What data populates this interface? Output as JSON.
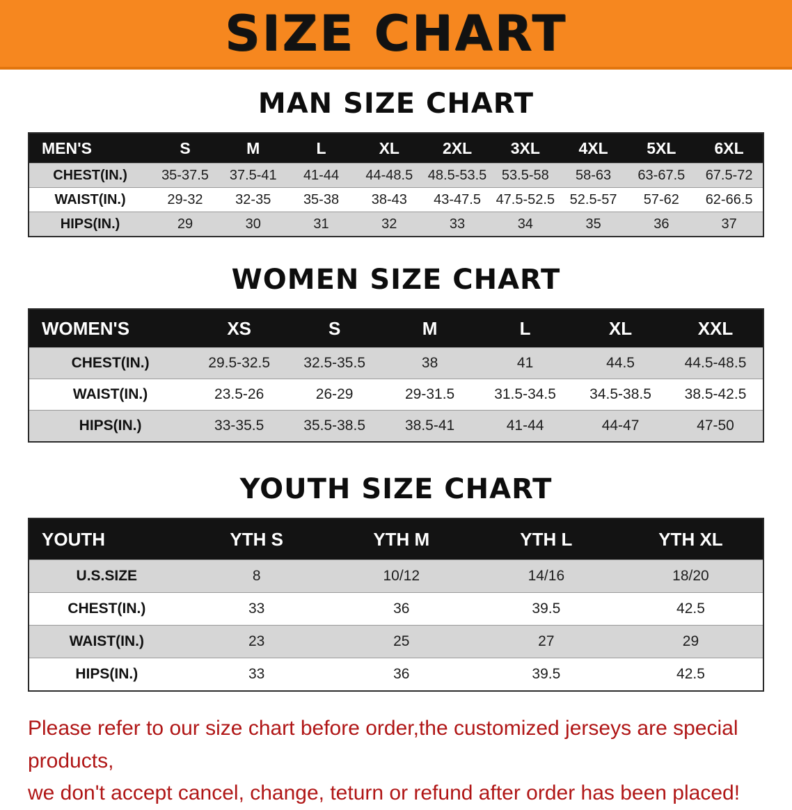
{
  "banner": {
    "title": "SIZE CHART",
    "bg_color": "#f6871f"
  },
  "sections": [
    {
      "heading": "MAN SIZE CHART",
      "table": {
        "header": [
          "MEN'S",
          "S",
          "M",
          "L",
          "XL",
          "2XL",
          "3XL",
          "4XL",
          "5XL",
          "6XL"
        ],
        "rows": [
          [
            "CHEST(IN.)",
            "35-37.5",
            "37.5-41",
            "41-44",
            "44-48.5",
            "48.5-53.5",
            "53.5-58",
            "58-63",
            "63-67.5",
            "67.5-72"
          ],
          [
            "WAIST(IN.)",
            "29-32",
            "32-35",
            "35-38",
            "38-43",
            "43-47.5",
            "47.5-52.5",
            "52.5-57",
            "57-62",
            "62-66.5"
          ],
          [
            "HIPS(IN.)",
            "29",
            "30",
            "31",
            "32",
            "33",
            "34",
            "35",
            "36",
            "37"
          ]
        ]
      }
    },
    {
      "heading": "WOMEN SIZE CHART",
      "table": {
        "header": [
          "WOMEN'S",
          "XS",
          "S",
          "M",
          "L",
          "XL",
          "XXL"
        ],
        "rows": [
          [
            "CHEST(IN.)",
            "29.5-32.5",
            "32.5-35.5",
            "38",
            "41",
            "44.5",
            "44.5-48.5"
          ],
          [
            "WAIST(IN.)",
            "23.5-26",
            "26-29",
            "29-31.5",
            "31.5-34.5",
            "34.5-38.5",
            "38.5-42.5"
          ],
          [
            "HIPS(IN.)",
            "33-35.5",
            "35.5-38.5",
            "38.5-41",
            "41-44",
            "44-47",
            "47-50"
          ]
        ]
      }
    },
    {
      "heading": "YOUTH SIZE CHART",
      "table": {
        "header": [
          "YOUTH",
          "YTH S",
          "YTH M",
          "YTH L",
          "YTH XL"
        ],
        "rows": [
          [
            "U.S.SIZE",
            "8",
            "10/12",
            "14/16",
            "18/20"
          ],
          [
            "CHEST(IN.)",
            "33",
            "36",
            "39.5",
            "42.5"
          ],
          [
            "WAIST(IN.)",
            "23",
            "25",
            "27",
            "29"
          ],
          [
            "HIPS(IN.)",
            "33",
            "36",
            "39.5",
            "42.5"
          ]
        ]
      }
    }
  ],
  "disclaimer": {
    "color": "#b01616",
    "lines": [
      "Please refer to our size chart before order,the customized jerseys are special products,",
      "we don't accept cancel, change, teturn or refund after order has been placed!"
    ]
  }
}
